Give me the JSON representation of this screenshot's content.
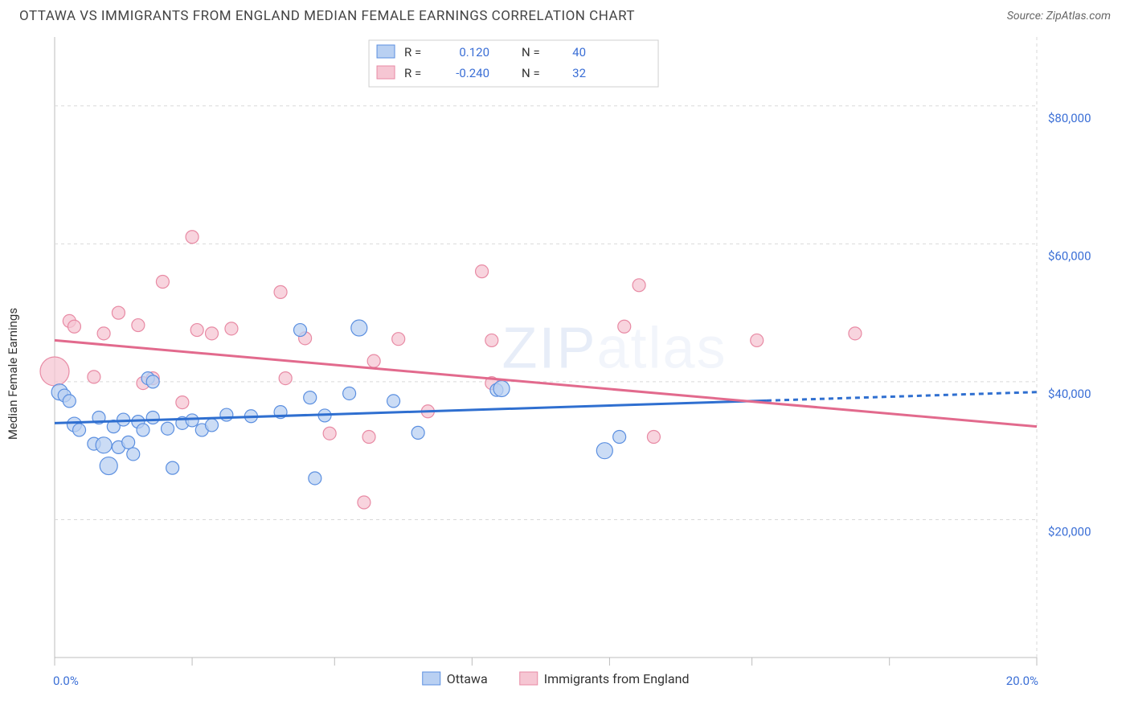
{
  "header": {
    "title": "OTTAWA VS IMMIGRANTS FROM ENGLAND MEDIAN FEMALE EARNINGS CORRELATION CHART",
    "source_prefix": "Source: ",
    "source_name": "ZipAtlas.com"
  },
  "chart": {
    "type": "scatter-regression",
    "ylabel": "Median Female Earnings",
    "xlim": [
      0,
      20
    ],
    "ylim": [
      0,
      90000
    ],
    "x_ticks_minor": [
      0,
      2.8,
      5.7,
      8.5,
      11.3,
      14.2,
      17.0,
      20.0
    ],
    "x_labels": [
      {
        "x": 0,
        "text": "0.0%"
      },
      {
        "x": 20,
        "text": "20.0%"
      }
    ],
    "y_gridlines": [
      20000,
      40000,
      60000,
      80000
    ],
    "y_labels": [
      "$20,000",
      "$40,000",
      "$60,000",
      "$80,000"
    ],
    "grid_color": "#d9d9d9",
    "axis_color": "#bdbdbd",
    "background_color": "#ffffff",
    "tick_label_color": "#3b6fd6",
    "watermark_text": "ZIPatlas",
    "watermark_color": "#9fb8e8",
    "series": {
      "blue": {
        "name": "Ottawa",
        "fill": "#b9d0f2",
        "stroke": "#5b8fe0",
        "line_color": "#2f6fd0",
        "r_value": "0.120",
        "n_value": "40",
        "trend": {
          "x1": 0,
          "y1": 34000,
          "x2": 20,
          "y2": 38500,
          "dash_after_x": 14.5
        },
        "points": [
          {
            "x": 0.1,
            "y": 38500,
            "r": 10
          },
          {
            "x": 0.2,
            "y": 38000,
            "r": 8
          },
          {
            "x": 0.3,
            "y": 37200,
            "r": 8
          },
          {
            "x": 0.4,
            "y": 33800,
            "r": 9
          },
          {
            "x": 0.5,
            "y": 33000,
            "r": 8
          },
          {
            "x": 0.8,
            "y": 31000,
            "r": 8
          },
          {
            "x": 0.9,
            "y": 34800,
            "r": 8
          },
          {
            "x": 1.0,
            "y": 30800,
            "r": 10
          },
          {
            "x": 1.1,
            "y": 27800,
            "r": 11
          },
          {
            "x": 1.2,
            "y": 33500,
            "r": 8
          },
          {
            "x": 1.3,
            "y": 30500,
            "r": 8
          },
          {
            "x": 1.4,
            "y": 34500,
            "r": 8
          },
          {
            "x": 1.5,
            "y": 31200,
            "r": 8
          },
          {
            "x": 1.6,
            "y": 29500,
            "r": 8
          },
          {
            "x": 1.7,
            "y": 34200,
            "r": 8
          },
          {
            "x": 1.8,
            "y": 33000,
            "r": 8
          },
          {
            "x": 1.9,
            "y": 40500,
            "r": 8
          },
          {
            "x": 2.0,
            "y": 34800,
            "r": 8
          },
          {
            "x": 2.0,
            "y": 40000,
            "r": 8
          },
          {
            "x": 2.3,
            "y": 33200,
            "r": 8
          },
          {
            "x": 2.4,
            "y": 27500,
            "r": 8
          },
          {
            "x": 2.6,
            "y": 34000,
            "r": 8
          },
          {
            "x": 2.8,
            "y": 34400,
            "r": 8
          },
          {
            "x": 3.0,
            "y": 33000,
            "r": 8
          },
          {
            "x": 3.2,
            "y": 33700,
            "r": 8
          },
          {
            "x": 3.5,
            "y": 35200,
            "r": 8
          },
          {
            "x": 4.0,
            "y": 35000,
            "r": 8
          },
          {
            "x": 4.6,
            "y": 35600,
            "r": 8
          },
          {
            "x": 5.0,
            "y": 47500,
            "r": 8
          },
          {
            "x": 5.2,
            "y": 37700,
            "r": 8
          },
          {
            "x": 5.3,
            "y": 26000,
            "r": 8
          },
          {
            "x": 5.5,
            "y": 35100,
            "r": 8
          },
          {
            "x": 6.0,
            "y": 38300,
            "r": 8
          },
          {
            "x": 6.2,
            "y": 47800,
            "r": 10
          },
          {
            "x": 6.9,
            "y": 37200,
            "r": 8
          },
          {
            "x": 7.4,
            "y": 32600,
            "r": 8
          },
          {
            "x": 9.0,
            "y": 38800,
            "r": 8
          },
          {
            "x": 9.1,
            "y": 39000,
            "r": 10
          },
          {
            "x": 11.2,
            "y": 30000,
            "r": 10
          },
          {
            "x": 11.5,
            "y": 32000,
            "r": 8
          }
        ]
      },
      "pink": {
        "name": "Immigrants from England",
        "fill": "#f6c6d3",
        "stroke": "#e88aa4",
        "line_color": "#e26a8d",
        "r_value": "-0.240",
        "n_value": "32",
        "trend": {
          "x1": 0,
          "y1": 46000,
          "x2": 20,
          "y2": 33500
        },
        "points": [
          {
            "x": 0.0,
            "y": 41500,
            "r": 18
          },
          {
            "x": 0.3,
            "y": 48800,
            "r": 8
          },
          {
            "x": 0.4,
            "y": 48000,
            "r": 8
          },
          {
            "x": 0.8,
            "y": 40700,
            "r": 8
          },
          {
            "x": 1.0,
            "y": 47000,
            "r": 8
          },
          {
            "x": 1.3,
            "y": 50000,
            "r": 8
          },
          {
            "x": 1.7,
            "y": 48200,
            "r": 8
          },
          {
            "x": 1.8,
            "y": 39800,
            "r": 8
          },
          {
            "x": 2.0,
            "y": 40500,
            "r": 8
          },
          {
            "x": 2.2,
            "y": 54500,
            "r": 8
          },
          {
            "x": 2.6,
            "y": 37000,
            "r": 8
          },
          {
            "x": 2.8,
            "y": 61000,
            "r": 8
          },
          {
            "x": 2.9,
            "y": 47500,
            "r": 8
          },
          {
            "x": 3.2,
            "y": 47000,
            "r": 8
          },
          {
            "x": 3.6,
            "y": 47700,
            "r": 8
          },
          {
            "x": 4.6,
            "y": 53000,
            "r": 8
          },
          {
            "x": 4.7,
            "y": 40500,
            "r": 8
          },
          {
            "x": 5.1,
            "y": 46300,
            "r": 8
          },
          {
            "x": 5.6,
            "y": 32500,
            "r": 8
          },
          {
            "x": 6.3,
            "y": 22500,
            "r": 8
          },
          {
            "x": 6.4,
            "y": 32000,
            "r": 8
          },
          {
            "x": 6.5,
            "y": 43000,
            "r": 8
          },
          {
            "x": 7.0,
            "y": 46200,
            "r": 8
          },
          {
            "x": 7.6,
            "y": 35700,
            "r": 8
          },
          {
            "x": 8.7,
            "y": 56000,
            "r": 8
          },
          {
            "x": 8.9,
            "y": 39800,
            "r": 8
          },
          {
            "x": 8.9,
            "y": 46000,
            "r": 8
          },
          {
            "x": 11.6,
            "y": 48000,
            "r": 8
          },
          {
            "x": 11.9,
            "y": 54000,
            "r": 8
          },
          {
            "x": 12.2,
            "y": 32000,
            "r": 8
          },
          {
            "x": 14.3,
            "y": 46000,
            "r": 8
          },
          {
            "x": 16.3,
            "y": 47000,
            "r": 8
          }
        ]
      }
    },
    "legend_top": {
      "border_color": "#cfcfcf",
      "bg": "#ffffff",
      "r_label": "R =",
      "n_label": "N ="
    },
    "legend_bottom": {
      "items": [
        "blue",
        "pink"
      ]
    }
  }
}
